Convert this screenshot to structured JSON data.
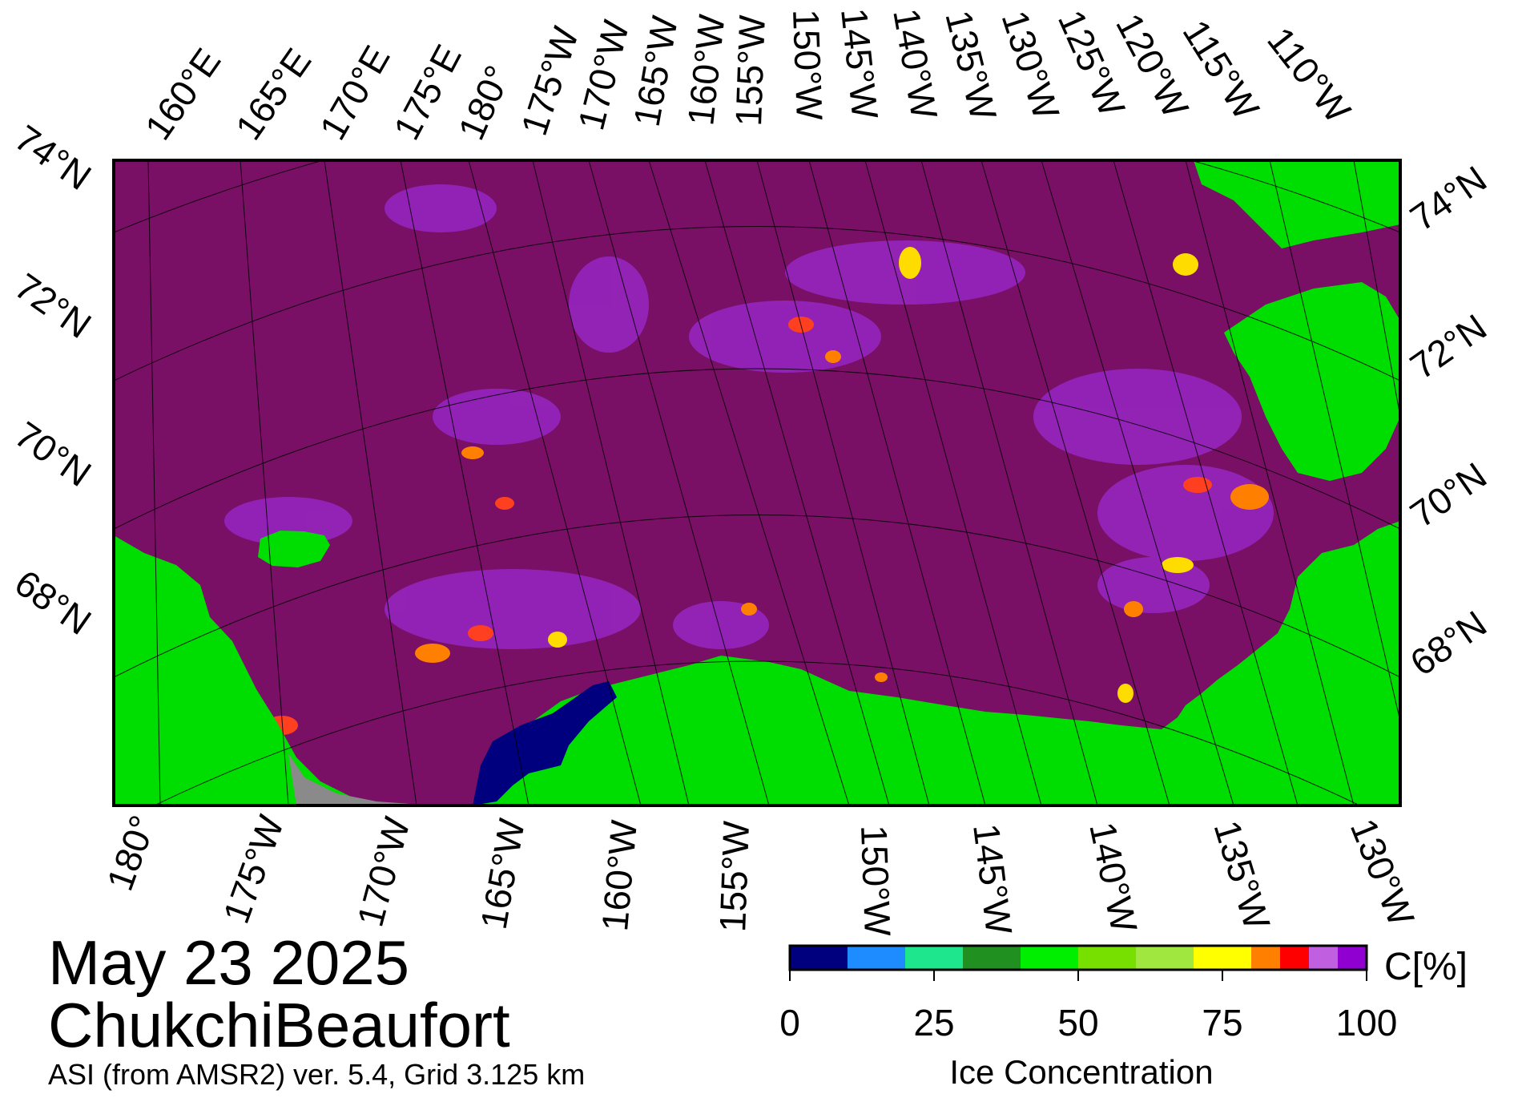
{
  "title": {
    "date": "May 23 2025",
    "region": "ChukchiBeaufort",
    "subtitle": "ASI (from AMSR2) ver. 5.4,  Grid 3.125 km"
  },
  "map": {
    "colors": {
      "land": "#00dd00",
      "ice_100": "#7a0f66",
      "no_data": "#8a8a8a",
      "frame": "#000000",
      "grid": "#000000"
    },
    "top_longitude_labels": [
      "160°E",
      "165°E",
      "170°E",
      "175°E",
      "180°",
      "175°W",
      "170°W",
      "165°W",
      "160°W",
      "155°W",
      "150°W",
      "145°W",
      "140°W",
      "135°W",
      "130°W",
      "125°W",
      "120°W",
      "115°W",
      "110°W"
    ],
    "bottom_longitude_labels": [
      "180°",
      "175°W",
      "170°W",
      "165°W",
      "160°W",
      "155°W",
      "150°W",
      "145°W",
      "140°W",
      "135°W",
      "130°W"
    ],
    "left_latitude_labels": [
      "74°N",
      "72°N",
      "70°N",
      "68°N"
    ],
    "right_latitude_labels": [
      "74°N",
      "72°N",
      "70°N",
      "68°N"
    ]
  },
  "colorbar": {
    "title": "Ice Concentration",
    "unit": "C[%]",
    "tick_labels": [
      "0",
      "25",
      "50",
      "75",
      "100"
    ],
    "colors": [
      "#00007f",
      "#1e8cff",
      "#1ee68c",
      "#209020",
      "#00e000",
      "#00ee00",
      "#78e000",
      "#a0e840",
      "#ffff00",
      "#ffdc00",
      "#ff8000",
      "#ff0000",
      "#c060e0",
      "#9000d0"
    ]
  }
}
